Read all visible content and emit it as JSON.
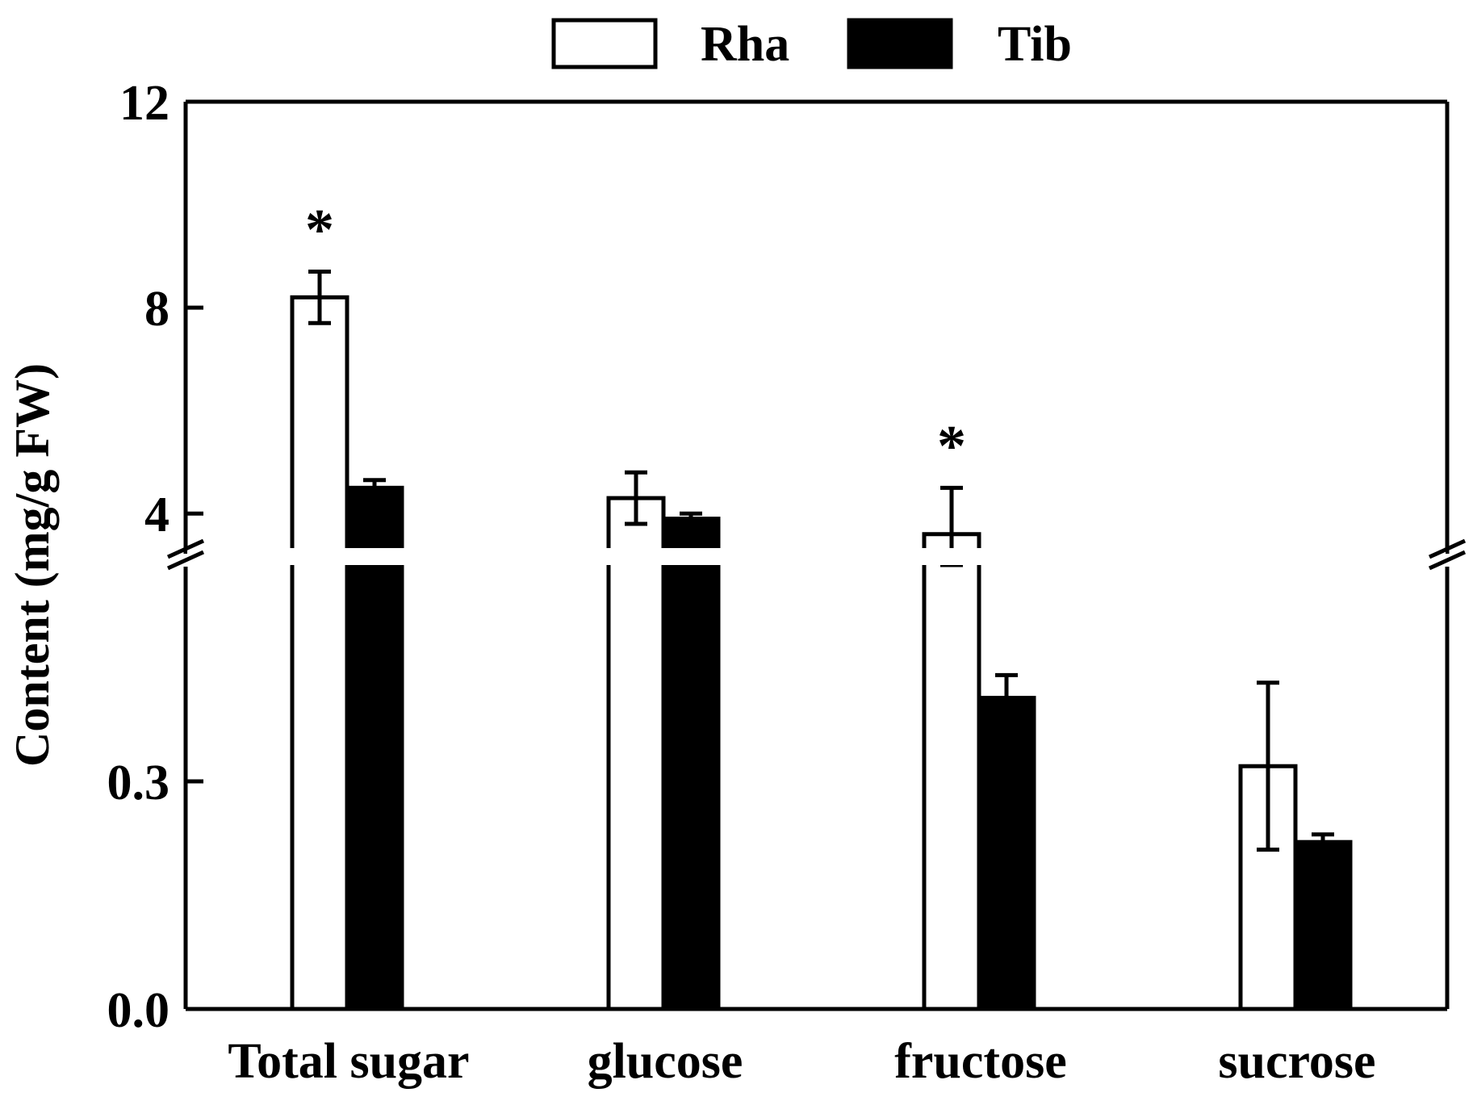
{
  "chart_data": {
    "type": "bar",
    "title": "",
    "xlabel": "",
    "ylabel": "Content (mg/g FW)",
    "categories": [
      "Total sugar",
      "glucose",
      "fructose",
      "sucrose"
    ],
    "series": [
      {
        "name": "Rha",
        "fill": "#ffffff",
        "values": [
          8.2,
          4.3,
          3.6,
          0.32
        ],
        "errors": [
          0.5,
          0.5,
          0.9,
          0.11
        ]
      },
      {
        "name": "Tib",
        "fill": "#000000",
        "values": [
          4.5,
          3.9,
          0.41,
          0.22
        ],
        "errors": [
          0.15,
          0.1,
          0.03,
          0.01
        ]
      }
    ],
    "significance": [
      {
        "category": "Total sugar",
        "series": "Rha",
        "mark": "*"
      },
      {
        "category": "fructose",
        "series": "Rha",
        "mark": "*"
      }
    ],
    "y_axis": {
      "broken": true,
      "lower_segment": {
        "ylim": [
          0.0,
          0.6
        ],
        "ticks": [
          0.0,
          0.3
        ],
        "tick_labels": [
          "0.0",
          "0.3"
        ]
      },
      "upper_segment": {
        "ylim": [
          3.0,
          12.0
        ],
        "ticks": [
          4,
          8,
          12
        ],
        "tick_labels": [
          "4",
          "8",
          "12"
        ]
      }
    },
    "legend": {
      "placement": "top-center",
      "entries": [
        "Rha",
        "Tib"
      ]
    },
    "grid": false
  }
}
